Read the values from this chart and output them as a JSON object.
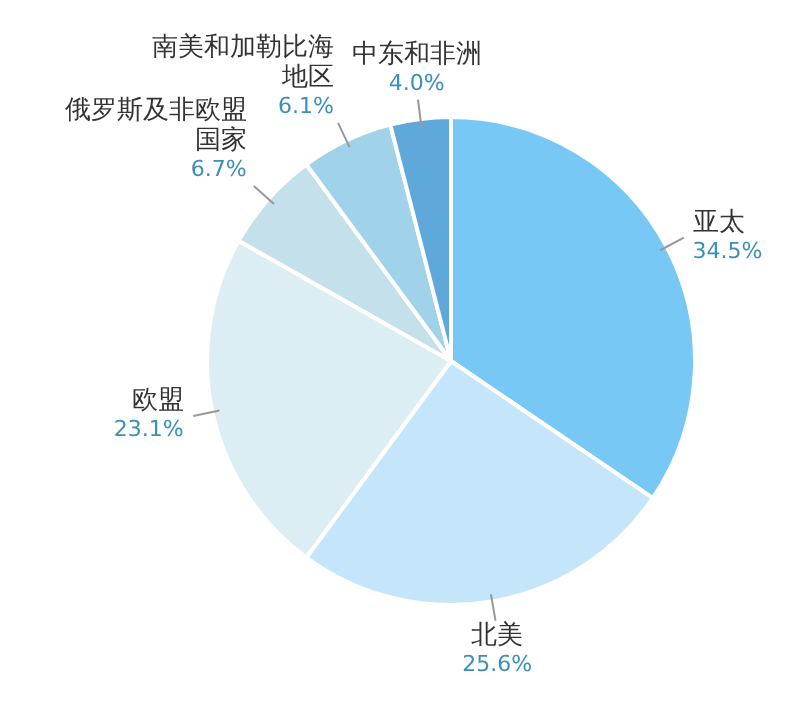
{
  "chart_data": {
    "type": "pie",
    "categories": [
      "亚太",
      "北美",
      "欧盟",
      "俄罗斯及非欧盟国家",
      "南美和加勒比海地区",
      "中东和非洲"
    ],
    "values": [
      34.5,
      25.6,
      23.1,
      6.7,
      6.1,
      4.0
    ],
    "colors": [
      "#78c8f5",
      "#c5e6fa",
      "#dcedf3",
      "#c3e0eb",
      "#a0d2ea",
      "#5fa8da"
    ],
    "value_labels": [
      "34.5%",
      "25.6%",
      "23.1%",
      "6.7%",
      "6.1%",
      "4.0%"
    ]
  }
}
